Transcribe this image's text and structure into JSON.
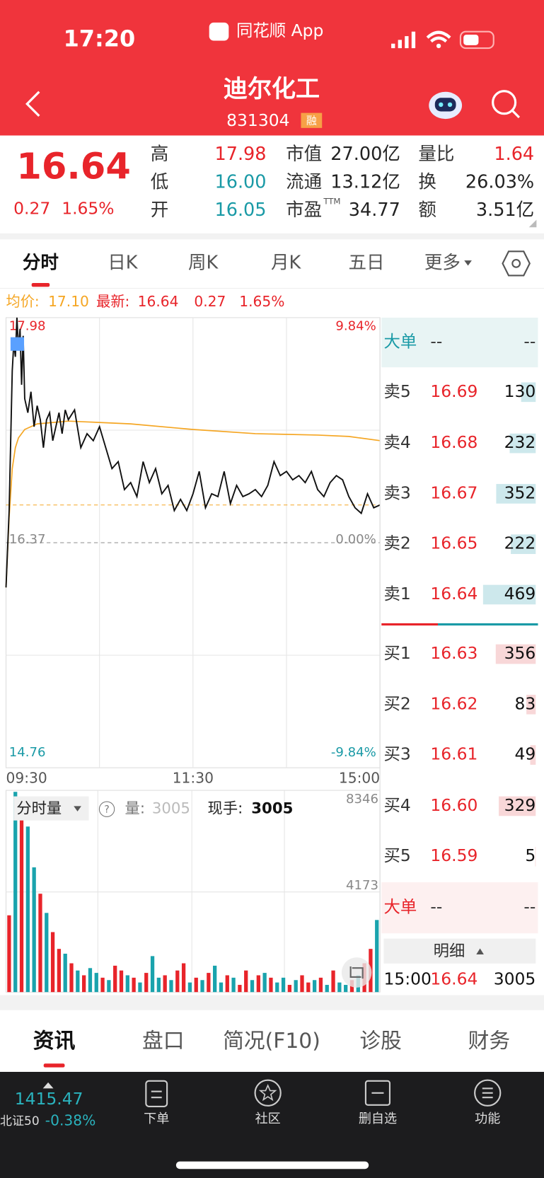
{
  "status_bar": {
    "time": "17:20",
    "app": "同花顺 App"
  },
  "header": {
    "title": "迪尔化工",
    "code": "831304",
    "badge": "融"
  },
  "quote": {
    "price": 16.64,
    "change": "0.27",
    "change_pct": "1.65%",
    "fields": [
      {
        "label": "高",
        "value": "17.98",
        "color": "#e8242a"
      },
      {
        "label": "低",
        "value": "16.00",
        "color": "#1a9aa6"
      },
      {
        "label": "开",
        "value": "16.05",
        "color": "#1a9aa6"
      },
      {
        "label": "市值",
        "value": "27.00亿",
        "color": "#222222"
      },
      {
        "label": "流通",
        "value": "13.12亿",
        "color": "#222222"
      },
      {
        "label": "市盈",
        "sup": "TTM",
        "value": "34.77",
        "color": "#222222"
      },
      {
        "label": "量比",
        "value": "1.64",
        "color": "#e8242a"
      },
      {
        "label": "换",
        "value": "26.03%",
        "color": "#222222"
      },
      {
        "label": "额",
        "value": "3.51亿",
        "color": "#222222"
      }
    ]
  },
  "tabs": [
    "分时",
    "日K",
    "周K",
    "月K",
    "五日",
    "更多"
  ],
  "info": {
    "avg_label": "均价:",
    "avg": "17.10",
    "last_label": "最新:",
    "last": "16.64",
    "change": "0.27",
    "change_pct": "1.65%"
  },
  "price_chart": {
    "type": "line",
    "xlim": [
      0,
      240
    ],
    "xticks": [
      {
        "value": 0,
        "label": "09:30"
      },
      {
        "value": 120,
        "label": "11:30"
      },
      {
        "value": 240,
        "label": "15:00"
      }
    ],
    "ylim": [
      14.76,
      17.98
    ],
    "yticks": [
      14.76,
      16.37,
      17.98
    ],
    "y2lim": [
      -9.84,
      9.84
    ],
    "y2ticks": [
      {
        "value": -9.84,
        "label": "-9.84%"
      },
      {
        "value": 0,
        "label": "0.00%"
      },
      {
        "value": 9.84,
        "label": "9.84%"
      }
    ],
    "x": [
      0,
      2,
      4,
      5,
      6,
      7,
      8,
      9,
      10,
      11,
      12,
      14,
      16,
      18,
      20,
      22,
      24,
      26,
      28,
      30,
      32,
      34,
      36,
      38,
      40,
      44,
      48,
      52,
      56,
      60,
      64,
      68,
      72,
      76,
      80,
      84,
      88,
      92,
      96,
      100,
      104,
      108,
      112,
      116,
      120,
      124,
      128,
      132,
      136,
      140,
      144,
      148,
      152,
      156,
      160,
      164,
      168,
      172,
      176,
      180,
      184,
      188,
      192,
      196,
      200,
      204,
      208,
      212,
      216,
      220,
      224,
      228,
      232,
      236,
      240
    ],
    "values": [
      16.05,
      16.6,
      17.6,
      17.8,
      17.7,
      17.98,
      17.75,
      17.9,
      17.5,
      17.85,
      17.4,
      17.3,
      17.45,
      17.2,
      17.35,
      17.25,
      17.05,
      17.25,
      17.3,
      17.1,
      17.2,
      17.3,
      17.15,
      17.32,
      17.25,
      17.32,
      17.05,
      17.15,
      17.1,
      17.2,
      17.05,
      16.9,
      16.95,
      16.75,
      16.8,
      16.7,
      16.95,
      16.8,
      16.9,
      16.72,
      16.78,
      16.6,
      16.68,
      16.6,
      16.72,
      16.88,
      16.62,
      16.72,
      16.7,
      16.88,
      16.65,
      16.78,
      16.7,
      16.72,
      16.75,
      16.7,
      16.78,
      16.95,
      16.85,
      16.88,
      16.82,
      16.85,
      16.8,
      16.88,
      16.75,
      16.7,
      16.8,
      16.85,
      16.82,
      16.7,
      16.62,
      16.58,
      16.72,
      16.62,
      16.64
    ],
    "color": "#111111",
    "avg_x": [
      0,
      2,
      4,
      6,
      8,
      12,
      20,
      40,
      80,
      120,
      160,
      200,
      220,
      240
    ],
    "avg": [
      16.05,
      16.55,
      16.9,
      17.05,
      17.12,
      17.18,
      17.22,
      17.24,
      17.22,
      17.18,
      17.15,
      17.14,
      17.13,
      17.1
    ],
    "avg_color": "#f5a623"
  },
  "volume_chart": {
    "type": "bar",
    "title": "分时量",
    "qty_label": "量:",
    "qty": "3005",
    "hand_label": "现手:",
    "hand": "3005",
    "ylim": [
      0,
      8346
    ],
    "yticks": [
      4173,
      8346
    ],
    "values": [
      3200,
      8346,
      7800,
      6900,
      5200,
      4100,
      3300,
      2500,
      1800,
      1600,
      1200,
      900,
      700,
      1000,
      800,
      600,
      500,
      1100,
      900,
      700,
      600,
      400,
      800,
      1500,
      600,
      700,
      500,
      900,
      1200,
      400,
      600,
      500,
      800,
      1100,
      400,
      700,
      600,
      300,
      900,
      500,
      700,
      800,
      600,
      400,
      600,
      300,
      500,
      700,
      400,
      500,
      600,
      300,
      900,
      400,
      300,
      500,
      700,
      1200,
      1800,
      3005
    ],
    "colors": [
      "#e8242a",
      "#1aa3ad",
      "#e8242a",
      "#1aa3ad",
      "#1aa3ad",
      "#e8242a",
      "#1aa3ad",
      "#e8242a",
      "#e8242a",
      "#1aa3ad",
      "#e8242a",
      "#1aa3ad",
      "#e8242a",
      "#1aa3ad",
      "#1aa3ad",
      "#e8242a",
      "#1aa3ad",
      "#e8242a",
      "#e8242a",
      "#1aa3ad",
      "#e8242a",
      "#1aa3ad",
      "#e8242a",
      "#1aa3ad",
      "#1aa3ad",
      "#e8242a",
      "#1aa3ad",
      "#e8242a",
      "#e8242a",
      "#1aa3ad",
      "#e8242a",
      "#1aa3ad",
      "#e8242a",
      "#1aa3ad",
      "#1aa3ad",
      "#e8242a",
      "#1aa3ad",
      "#e8242a",
      "#e8242a",
      "#1aa3ad",
      "#e8242a",
      "#1aa3ad",
      "#e8242a",
      "#1aa3ad",
      "#1aa3ad",
      "#e8242a",
      "#1aa3ad",
      "#e8242a",
      "#e8242a",
      "#1aa3ad",
      "#e8242a",
      "#1aa3ad",
      "#e8242a",
      "#1aa3ad",
      "#1aa3ad",
      "#e8242a",
      "#1aa3ad",
      "#e8242a",
      "#e8242a",
      "#1aa3ad"
    ]
  },
  "order_book": {
    "big_sell": {
      "label": "大单",
      "price": "--",
      "vol": "--"
    },
    "asks": [
      {
        "label": "卖5",
        "price": "16.69",
        "vol": 130
      },
      {
        "label": "卖4",
        "price": "16.68",
        "vol": 232
      },
      {
        "label": "卖3",
        "price": "16.67",
        "vol": 352
      },
      {
        "label": "卖2",
        "price": "16.65",
        "vol": 222
      },
      {
        "label": "卖1",
        "price": "16.64",
        "vol": 469
      }
    ],
    "bids": [
      {
        "label": "买1",
        "price": "16.63",
        "vol": 356
      },
      {
        "label": "买2",
        "price": "16.62",
        "vol": 83
      },
      {
        "label": "买3",
        "price": "16.61",
        "vol": 49
      },
      {
        "label": "买4",
        "price": "16.60",
        "vol": 329
      },
      {
        "label": "买5",
        "price": "16.59",
        "vol": 5
      }
    ],
    "big_buy": {
      "label": "大单",
      "price": "--",
      "vol": "--"
    },
    "detail": {
      "label": "明细",
      "time": "15:00",
      "price": "16.64",
      "vol": 3005
    }
  },
  "bottom_tabs": [
    "资讯",
    "盘口",
    "简况(F10)",
    "诊股",
    "财务"
  ],
  "nav": {
    "index_value": "1415.47",
    "index_name": "北证50",
    "index_change": "-0.38%",
    "items": [
      "下单",
      "社区",
      "删自选",
      "功能"
    ]
  }
}
